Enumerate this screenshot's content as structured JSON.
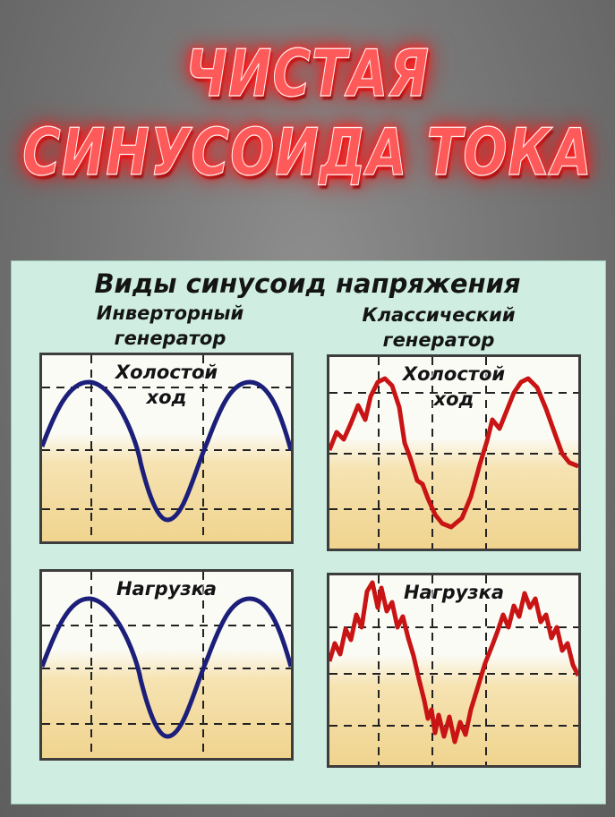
{
  "title": {
    "line1": "ЧИСТАЯ",
    "line2": "СИНУСОИДА ТОКА"
  },
  "heading": "Виды синусоид напряжения",
  "columns": {
    "inverter": {
      "line1": "Инверторный",
      "line2": "генератор"
    },
    "classic": {
      "line1": "Классический",
      "line2": "генератор"
    }
  },
  "plots": {
    "idle_line1": "Холостой",
    "idle_line2": "ход",
    "load": "Нагрузка"
  },
  "colors": {
    "title_glow": "#ff2a2a",
    "panel_bg": "#cfeee1",
    "inverter_wave": "#1c1f7a",
    "classic_wave": "#c81414",
    "plot_top": "#fbfbf5",
    "plot_bottom": "#f0d48f"
  }
}
